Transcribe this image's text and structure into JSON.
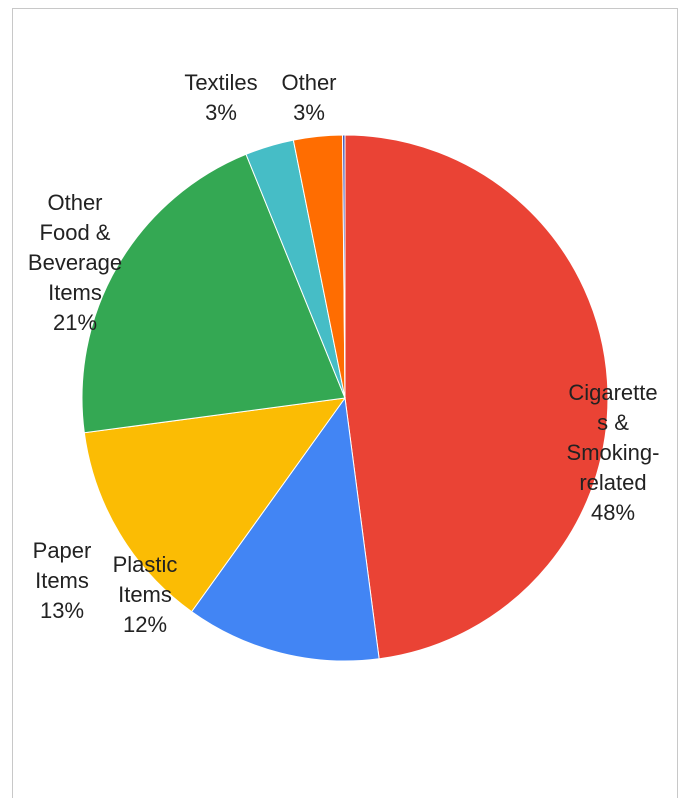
{
  "chart_data": {
    "type": "pie",
    "title": "",
    "start_angle_deg": 0,
    "direction": "clockwise",
    "slices": [
      {
        "label_lines": [
          "Cigarette",
          "s &",
          "Smoking-",
          "related"
        ],
        "pct_text": "48%",
        "value": 48,
        "color": "#ea4335"
      },
      {
        "label_lines": [
          "Plastic",
          "Items"
        ],
        "pct_text": "12%",
        "value": 12,
        "color": "#4285f4"
      },
      {
        "label_lines": [
          "Paper",
          "Items"
        ],
        "pct_text": "13%",
        "value": 13,
        "color": "#fbbc04"
      },
      {
        "label_lines": [
          "Other",
          "Food &",
          "Beverage",
          "Items"
        ],
        "pct_text": "21%",
        "value": 21,
        "color": "#34a853"
      },
      {
        "label_lines": [
          "Textiles"
        ],
        "pct_text": "3%",
        "value": 3,
        "color": "#46bdc6"
      },
      {
        "label_lines": [
          "Other"
        ],
        "pct_text": "3%",
        "value": 3,
        "color": "#ff6d01"
      },
      {
        "label_lines": [],
        "pct_text": "",
        "value": 0.15,
        "color": "#3f51b5"
      }
    ]
  }
}
